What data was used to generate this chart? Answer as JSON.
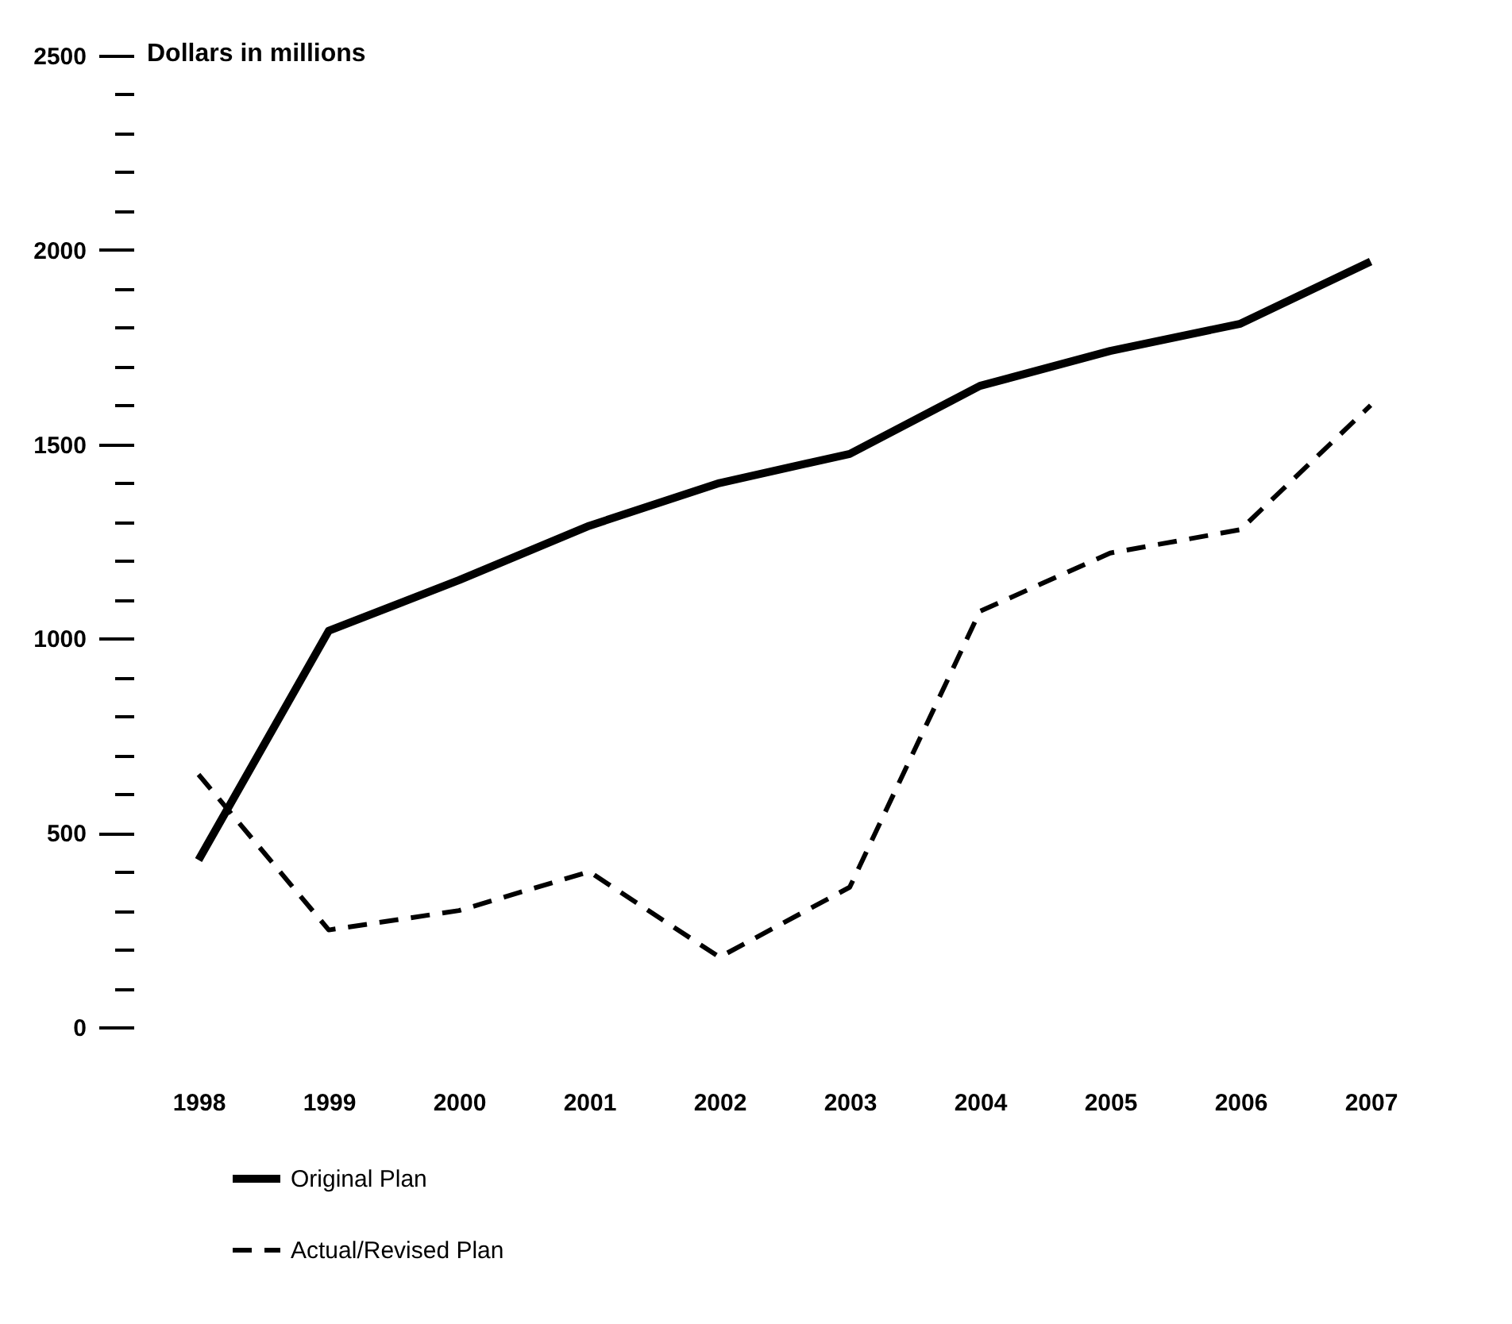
{
  "chart_data": {
    "type": "line",
    "ylabel": "Dollars in millions",
    "categories": [
      "1998",
      "1999",
      "2000",
      "2001",
      "2002",
      "2003",
      "2004",
      "2005",
      "2006",
      "2007"
    ],
    "series": [
      {
        "name": "Original Plan",
        "color": "#000000",
        "line_style": "solid",
        "values": [
          430,
          1020,
          1150,
          1290,
          1400,
          1475,
          1650,
          1740,
          1810,
          1970
        ]
      },
      {
        "name": "Actual/Revised Plan",
        "color": "#000000",
        "line_style": "dashed",
        "values": [
          650,
          250,
          300,
          400,
          180,
          360,
          1070,
          1220,
          1280,
          1600
        ]
      }
    ],
    "ylim": [
      0,
      2500
    ],
    "yticks": [
      0,
      {
        "value": 100,
        "label": null
      },
      {
        "value": 200,
        "label": null
      },
      {
        "value": 300,
        "label": null
      },
      {
        "value": 400,
        "label": null
      },
      500,
      {
        "value": 600,
        "label": null
      },
      {
        "value": 700,
        "label": null
      },
      {
        "value": 800,
        "label": null
      },
      {
        "value": 900,
        "label": null
      },
      1000,
      {
        "value": 1100,
        "label": null
      },
      {
        "value": 1200,
        "label": null
      },
      {
        "value": 1300,
        "label": null
      },
      {
        "value": 1400,
        "label": null
      },
      1500,
      {
        "value": 1600,
        "label": null
      },
      {
        "value": 1700,
        "label": null
      },
      {
        "value": 1800,
        "label": null
      },
      {
        "value": 1900,
        "label": null
      },
      2000,
      {
        "value": 2100,
        "label": null
      },
      {
        "value": 2200,
        "label": null
      },
      {
        "value": 2300,
        "label": null
      },
      {
        "value": 2400,
        "label": null
      },
      2500
    ],
    "grid": false,
    "legend": "bottom left",
    "marker": "none"
  }
}
